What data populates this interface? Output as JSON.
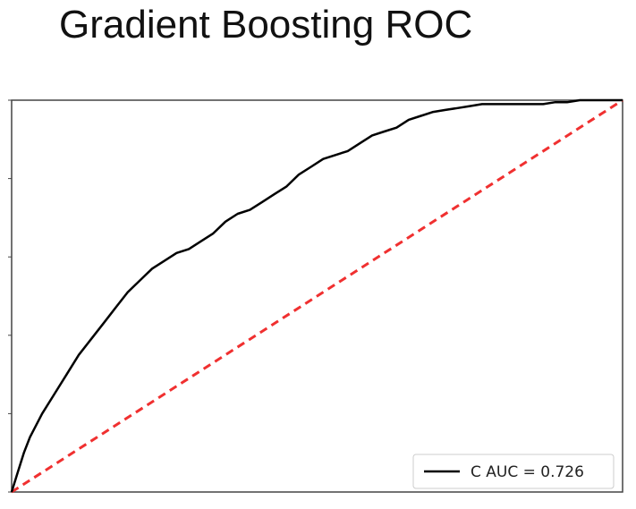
{
  "chart_data": {
    "type": "line",
    "title": "Gradient Boosting ROC",
    "xlabel": "",
    "ylabel": "",
    "xlim": [
      0,
      1
    ],
    "ylim": [
      0,
      1
    ],
    "grid": false,
    "legend_position": "bottom-right",
    "series": [
      {
        "name": "C AUC = 0.726",
        "color": "#000000",
        "style": "solid",
        "x": [
          0.0,
          0.01,
          0.02,
          0.03,
          0.05,
          0.07,
          0.09,
          0.11,
          0.13,
          0.15,
          0.17,
          0.19,
          0.21,
          0.23,
          0.25,
          0.27,
          0.29,
          0.31,
          0.33,
          0.35,
          0.37,
          0.39,
          0.41,
          0.43,
          0.45,
          0.47,
          0.49,
          0.51,
          0.53,
          0.55,
          0.57,
          0.59,
          0.61,
          0.63,
          0.65,
          0.67,
          0.69,
          0.71,
          0.73,
          0.75,
          0.77,
          0.79,
          0.81,
          0.83,
          0.85,
          0.87,
          0.89,
          0.91,
          0.93,
          0.95,
          0.97,
          1.0
        ],
        "y": [
          0.0,
          0.05,
          0.1,
          0.14,
          0.2,
          0.25,
          0.3,
          0.35,
          0.39,
          0.43,
          0.47,
          0.51,
          0.54,
          0.57,
          0.59,
          0.61,
          0.62,
          0.64,
          0.66,
          0.69,
          0.71,
          0.72,
          0.74,
          0.76,
          0.78,
          0.81,
          0.83,
          0.85,
          0.86,
          0.87,
          0.89,
          0.91,
          0.92,
          0.93,
          0.95,
          0.96,
          0.97,
          0.975,
          0.98,
          0.985,
          0.99,
          0.99,
          0.99,
          0.99,
          0.99,
          0.99,
          0.995,
          0.995,
          1.0,
          1.0,
          1.0,
          1.0
        ]
      },
      {
        "name": "",
        "color": "#f03030",
        "style": "dashed",
        "x": [
          0.0,
          1.0
        ],
        "y": [
          0.0,
          1.0
        ]
      }
    ]
  }
}
